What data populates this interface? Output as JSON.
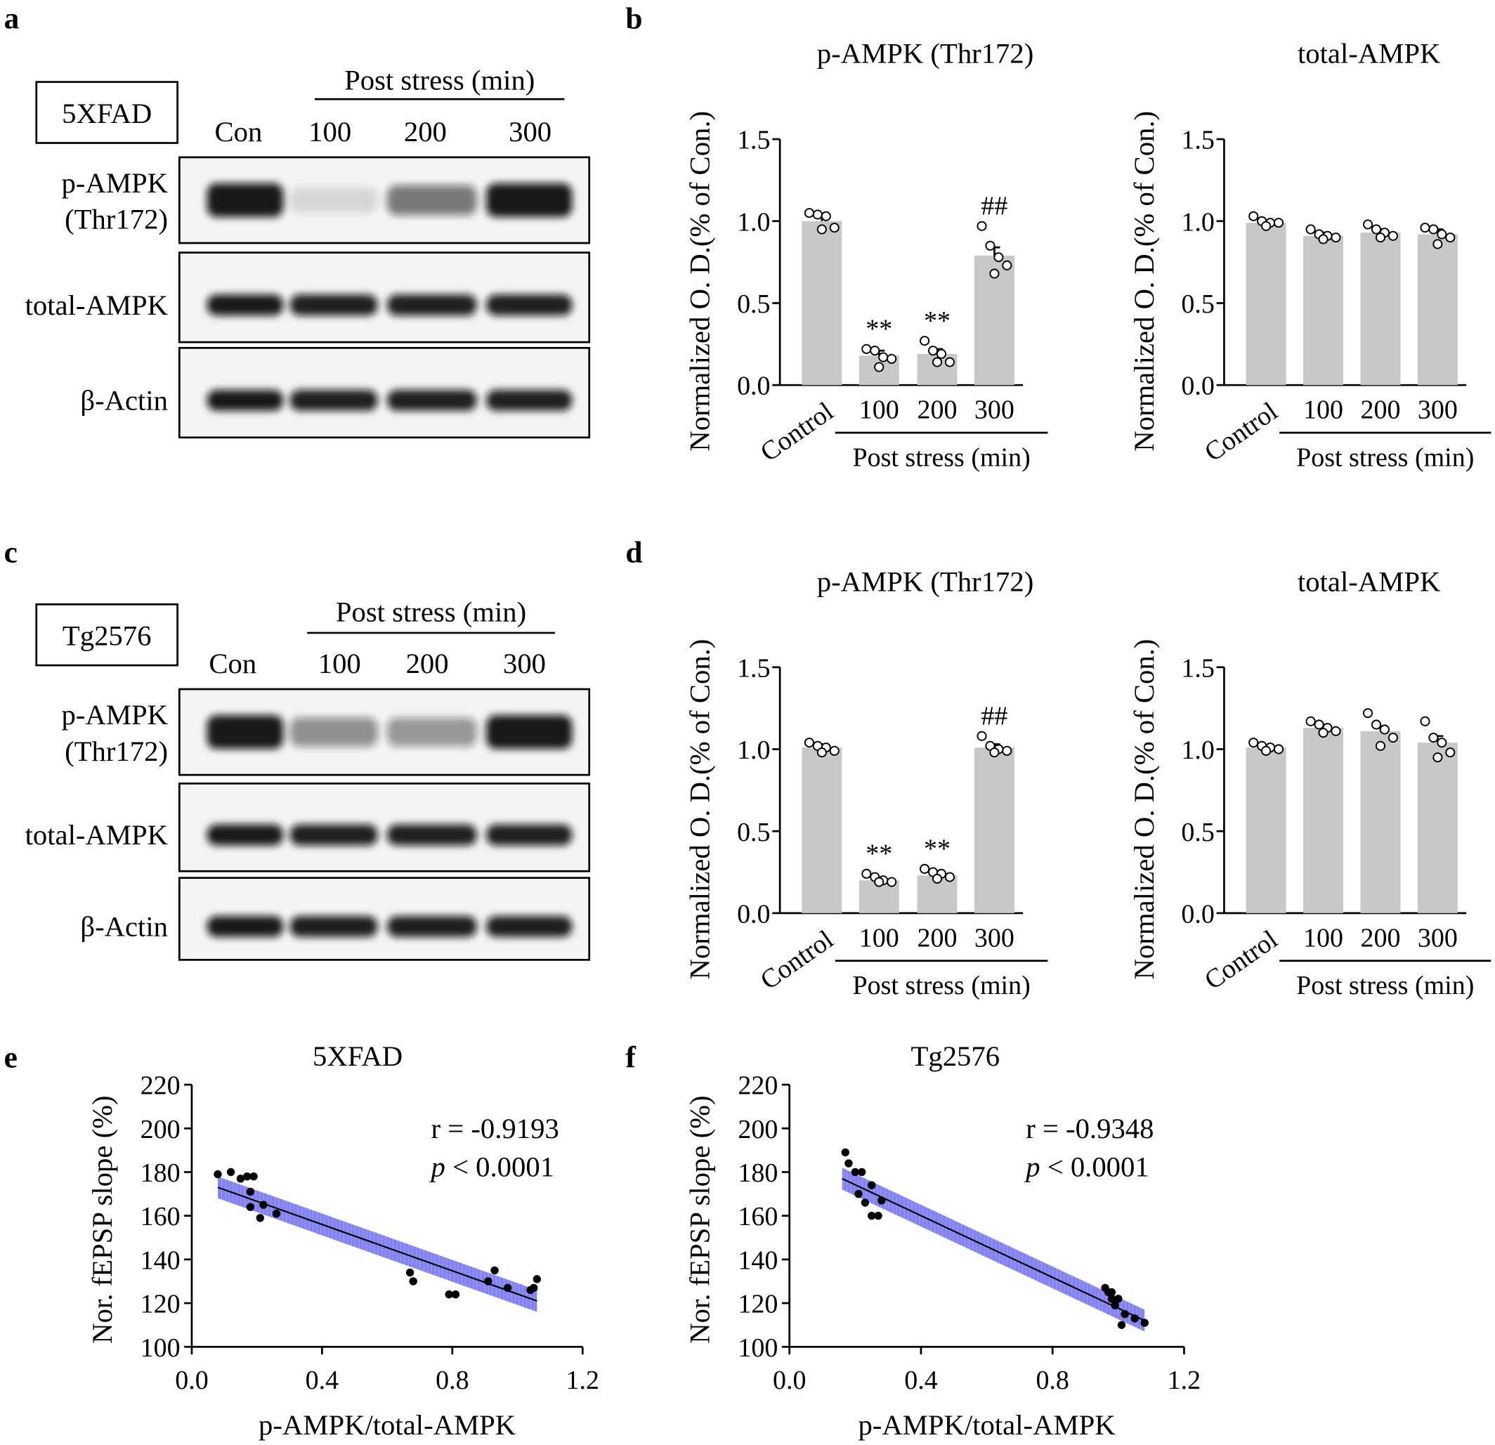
{
  "panels": {
    "a": "a",
    "b": "b",
    "c": "c",
    "d": "d",
    "e": "e",
    "f": "f"
  },
  "blots": [
    {
      "model": "5XFAD",
      "header": "Post stress (min)",
      "lanes": [
        "Con",
        "100",
        "200",
        "300"
      ],
      "rows": [
        {
          "label_lines": [
            "p-AMPK",
            "(Thr172)"
          ],
          "intensities": [
            0.95,
            0.12,
            0.55,
            0.95
          ]
        },
        {
          "label_lines": [
            "total-AMPK"
          ],
          "intensities": [
            0.95,
            0.92,
            0.92,
            0.92
          ]
        },
        {
          "label_lines": [
            "β-Actin"
          ],
          "intensities": [
            0.95,
            0.92,
            0.92,
            0.92
          ]
        }
      ]
    },
    {
      "model": "Tg2576",
      "header": "Post stress (min)",
      "lanes": [
        "Con",
        "100",
        "200",
        "300"
      ],
      "rows": [
        {
          "label_lines": [
            "p-AMPK",
            "(Thr172)"
          ],
          "intensities": [
            0.95,
            0.45,
            0.42,
            0.95
          ]
        },
        {
          "label_lines": [
            "total-AMPK"
          ],
          "intensities": [
            0.95,
            0.92,
            0.92,
            0.92
          ]
        },
        {
          "label_lines": [
            "β-Actin"
          ],
          "intensities": [
            0.95,
            0.92,
            0.92,
            0.92
          ]
        }
      ]
    }
  ],
  "colors": {
    "bar": "#c8c8c8",
    "band": "#111111",
    "ci_band": "#7b7bf0",
    "dot": "#000000"
  },
  "chart_data": [
    {
      "panel": "b",
      "type": "bar",
      "title": "p-AMPK (Thr172)",
      "ylabel": "Normalized O. D.(% of Con.)",
      "ylim": [
        0,
        1.5
      ],
      "yticks": [
        "0.0",
        "0.5",
        "1.0",
        "1.5"
      ],
      "categories": [
        "Control",
        "100",
        "200",
        "300"
      ],
      "group_label": "Post stress (min)",
      "values": [
        1.0,
        0.18,
        0.19,
        0.79
      ],
      "sem": [
        0.03,
        0.03,
        0.03,
        0.05
      ],
      "points": [
        [
          1.05,
          1.04,
          1.03,
          0.96,
          0.95
        ],
        [
          0.22,
          0.21,
          0.17,
          0.16,
          0.11
        ],
        [
          0.27,
          0.21,
          0.19,
          0.14,
          0.14
        ],
        [
          0.97,
          0.85,
          0.78,
          0.73,
          0.68
        ]
      ],
      "annotations": [
        "",
        "**",
        "**",
        "##"
      ]
    },
    {
      "panel": "b",
      "type": "bar",
      "title": "total-AMPK",
      "ylabel": "Normalized O. D.(% of Con.)",
      "ylim": [
        0,
        1.5
      ],
      "yticks": [
        "0.0",
        "0.5",
        "1.0",
        "1.5"
      ],
      "categories": [
        "Control",
        "100",
        "200",
        "300"
      ],
      "group_label": "Post stress (min)",
      "values": [
        0.99,
        0.91,
        0.93,
        0.92
      ],
      "sem": [
        0.01,
        0.02,
        0.02,
        0.03
      ],
      "points": [
        [
          1.03,
          1.0,
          0.99,
          0.99,
          0.97
        ],
        [
          0.95,
          0.92,
          0.91,
          0.9,
          0.89
        ],
        [
          0.98,
          0.95,
          0.93,
          0.91,
          0.9
        ],
        [
          0.96,
          0.95,
          0.92,
          0.9,
          0.86
        ]
      ],
      "annotations": [
        "",
        "",
        "",
        ""
      ]
    },
    {
      "panel": "d",
      "type": "bar",
      "title": "p-AMPK (Thr172)",
      "ylabel": "Normalized O. D.(% of Con.)",
      "ylim": [
        0,
        1.5
      ],
      "yticks": [
        "0.0",
        "0.5",
        "1.0",
        "1.5"
      ],
      "categories": [
        "Control",
        "100",
        "200",
        "300"
      ],
      "group_label": "Post stress (min)",
      "values": [
        1.01,
        0.2,
        0.23,
        1.01
      ],
      "sem": [
        0.02,
        0.01,
        0.01,
        0.02
      ],
      "points": [
        [
          1.04,
          1.02,
          1.01,
          0.99,
          0.98
        ],
        [
          0.24,
          0.22,
          0.2,
          0.19,
          0.19
        ],
        [
          0.27,
          0.25,
          0.24,
          0.22,
          0.21
        ],
        [
          1.08,
          1.02,
          1.0,
          0.99,
          0.98
        ]
      ],
      "annotations": [
        "",
        "**",
        "**",
        "##"
      ]
    },
    {
      "panel": "d",
      "type": "bar",
      "title": "total-AMPK",
      "ylabel": "Normalized O. D.(% of Con.)",
      "ylim": [
        0,
        1.5
      ],
      "yticks": [
        "0.0",
        "0.5",
        "1.0",
        "1.5"
      ],
      "categories": [
        "Control",
        "100",
        "200",
        "300"
      ],
      "group_label": "Post stress (min)",
      "values": [
        1.01,
        1.13,
        1.11,
        1.04
      ],
      "sem": [
        0.01,
        0.02,
        0.03,
        0.04
      ],
      "points": [
        [
          1.04,
          1.02,
          1.01,
          1.0,
          0.99
        ],
        [
          1.17,
          1.15,
          1.13,
          1.11,
          1.1
        ],
        [
          1.22,
          1.15,
          1.12,
          1.07,
          1.02
        ],
        [
          1.17,
          1.07,
          1.04,
          0.98,
          0.95
        ]
      ],
      "annotations": [
        "",
        "",
        "",
        ""
      ]
    },
    {
      "panel": "e",
      "type": "scatter",
      "title": "5XFAD",
      "xlabel": "p-AMPK/total-AMPK",
      "ylabel": "Nor. fEPSP slope (%)",
      "xlim": [
        0,
        1.2
      ],
      "ylim": [
        100,
        220
      ],
      "xticks": [
        "0.0",
        "0.4",
        "0.8",
        "1.2"
      ],
      "yticks": [
        "100",
        "120",
        "140",
        "160",
        "180",
        "200",
        "220"
      ],
      "x": [
        0.08,
        0.12,
        0.15,
        0.17,
        0.18,
        0.19,
        0.18,
        0.22,
        0.21,
        0.26,
        0.67,
        0.68,
        0.79,
        0.81,
        0.91,
        0.93,
        0.97,
        1.04,
        1.05,
        1.06
      ],
      "y": [
        179,
        180,
        177,
        178,
        171,
        178,
        164,
        165,
        159,
        161,
        134,
        130,
        124,
        124,
        130,
        135,
        127,
        126,
        127,
        131
      ],
      "fit": {
        "x1": 0.08,
        "y1": 173,
        "x2": 1.06,
        "y2": 121,
        "ci": 5
      },
      "stats": {
        "r": "r = -0.9193",
        "p_symbol": "p",
        "p_value": " < 0.0001"
      }
    },
    {
      "panel": "f",
      "type": "scatter",
      "title": "Tg2576",
      "xlabel": "p-AMPK/total-AMPK",
      "ylabel": "Nor. fEPSP slope (%)",
      "xlim": [
        0,
        1.2
      ],
      "ylim": [
        100,
        220
      ],
      "xticks": [
        "0.0",
        "0.4",
        "0.8",
        "1.2"
      ],
      "yticks": [
        "100",
        "120",
        "140",
        "160",
        "180",
        "200",
        "220"
      ],
      "x": [
        0.17,
        0.18,
        0.2,
        0.22,
        0.21,
        0.23,
        0.25,
        0.27,
        0.28,
        0.25,
        0.96,
        0.97,
        0.98,
        0.99,
        1.0,
        0.98,
        1.02,
        1.01,
        1.05,
        1.08
      ],
      "y": [
        189,
        184,
        180,
        180,
        170,
        166,
        174,
        160,
        167,
        160,
        127,
        125,
        122,
        119,
        122,
        125,
        115,
        110,
        113,
        111
      ],
      "fit": {
        "x1": 0.16,
        "y1": 177,
        "x2": 1.08,
        "y2": 112,
        "ci": 5
      },
      "stats": {
        "r": "r = -0.9348",
        "p_symbol": "p",
        "p_value": " < 0.0001"
      }
    }
  ]
}
